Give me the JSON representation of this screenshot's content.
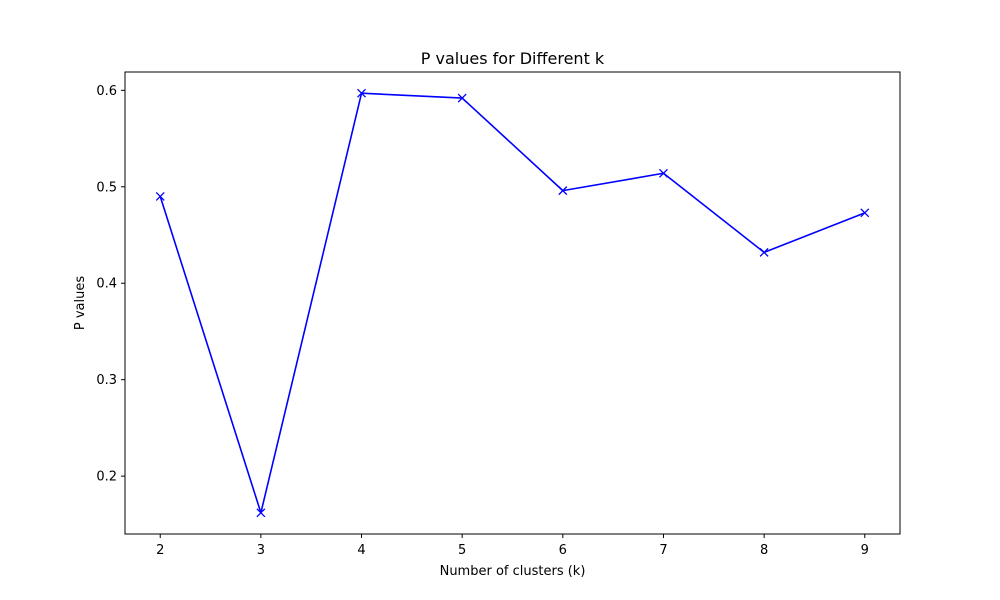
{
  "chart_data": {
    "type": "line",
    "title": "P values for Different k",
    "xlabel": "Number of clusters (k)",
    "ylabel": "P values",
    "x": [
      2,
      3,
      4,
      5,
      6,
      7,
      8,
      9
    ],
    "y": [
      0.49,
      0.162,
      0.597,
      0.592,
      0.496,
      0.514,
      0.432,
      0.473
    ],
    "xticks": [
      2,
      3,
      4,
      5,
      6,
      7,
      8,
      9
    ],
    "yticks": [
      0.2,
      0.3,
      0.4,
      0.5,
      0.6
    ],
    "xlim": [
      1.65,
      9.35
    ],
    "ylim": [
      0.14,
      0.619
    ],
    "marker": "x",
    "line_color": "#0000ff",
    "grid": false
  }
}
